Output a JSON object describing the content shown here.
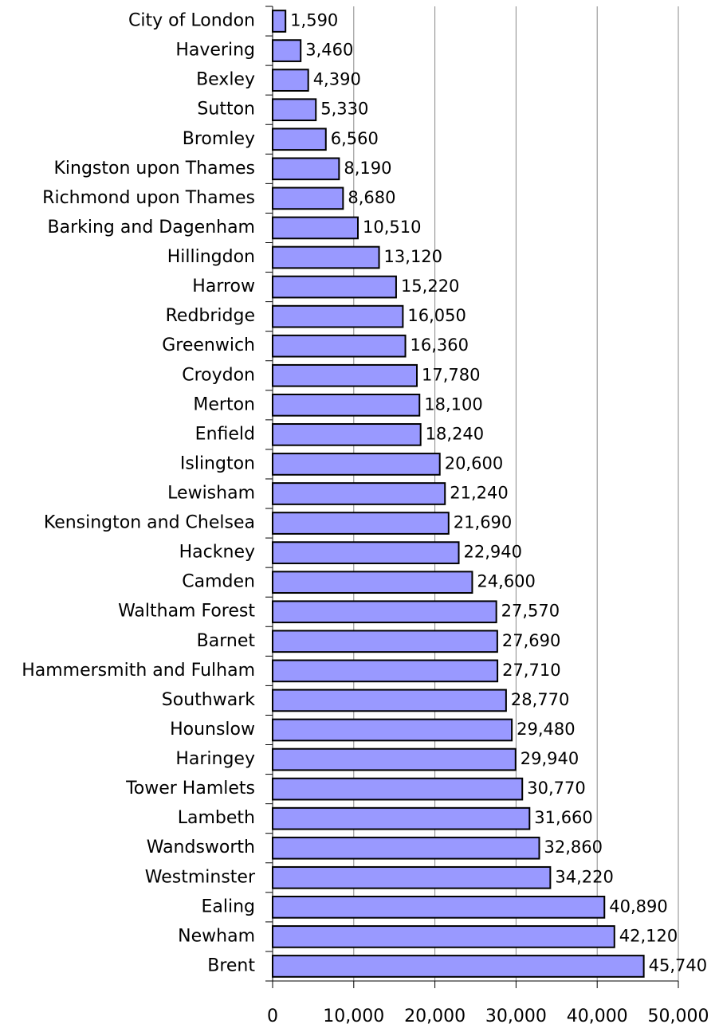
{
  "chart_data": {
    "type": "bar",
    "orientation": "horizontal",
    "categories": [
      "City of London",
      "Havering",
      "Bexley",
      "Sutton",
      "Bromley",
      "Kingston upon Thames",
      "Richmond upon Thames",
      "Barking and Dagenham",
      "Hillingdon",
      "Harrow",
      "Redbridge",
      "Greenwich",
      "Croydon",
      "Merton",
      "Enfield",
      "Islington",
      "Lewisham",
      "Kensington and Chelsea",
      "Hackney",
      "Camden",
      "Waltham Forest",
      "Barnet",
      "Hammersmith and Fulham",
      "Southwark",
      "Hounslow",
      "Haringey",
      "Tower Hamlets",
      "Lambeth",
      "Wandsworth",
      "Westminster",
      "Ealing",
      "Newham",
      "Brent"
    ],
    "values": [
      1590,
      3460,
      4390,
      5330,
      6560,
      8190,
      8680,
      10510,
      13120,
      15220,
      16050,
      16360,
      17780,
      18100,
      18240,
      20600,
      21240,
      21690,
      22940,
      24600,
      27570,
      27690,
      27710,
      28770,
      29480,
      29940,
      30770,
      31660,
      32860,
      34220,
      40890,
      42120,
      45740
    ],
    "value_labels": [
      "1,590",
      "3,460",
      "4,390",
      "5,330",
      "6,560",
      "8,190",
      "8,680",
      "10,510",
      "13,120",
      "15,220",
      "16,050",
      "16,360",
      "17,780",
      "18,100",
      "18,240",
      "20,600",
      "21,240",
      "21,690",
      "22,940",
      "24,600",
      "27,570",
      "27,690",
      "27,710",
      "28,770",
      "29,480",
      "29,940",
      "30,770",
      "31,660",
      "32,860",
      "34,220",
      "40,890",
      "42,120",
      "45,740"
    ],
    "color": "#9999ff",
    "xlim": [
      0,
      50000
    ],
    "xticks": [
      0,
      {
        "value": 10000,
        "label": "10,000"
      },
      {
        "value": 20000,
        "label": "20,000"
      },
      {
        "value": 30000,
        "label": "30,000"
      },
      {
        "value": 40000,
        "label": "40,000"
      },
      {
        "value": 50000,
        "label": "50,000"
      }
    ],
    "grid": true
  }
}
